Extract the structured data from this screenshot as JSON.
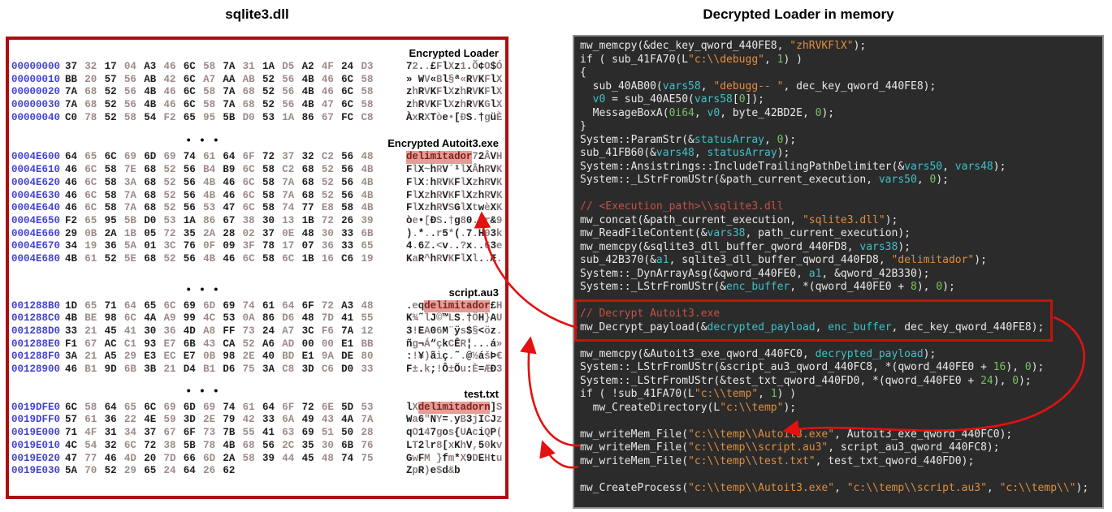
{
  "left_panel": {
    "title": "sqlite3.dll",
    "dots": "• • •",
    "sections": [
      {
        "label": "Encrypted Loader",
        "rows": [
          {
            "offset": "00000000",
            "bytes": "37 32 17 04 A3 46 6C 58 7A 31 1A D5 A2 4F 24 D3",
            "ascii_pre": "72..£FlXz1.Õ¢O$Ó",
            "ascii_hl": "",
            "ascii_post": ""
          },
          {
            "offset": "00000010",
            "bytes": "BB 20 57 56 AB 42 6C A7 AA AB 52 56 4B 46 6C 58",
            "ascii_pre": "» WV«Bl§ª«RVKFlX",
            "ascii_hl": "",
            "ascii_post": ""
          },
          {
            "offset": "00000020",
            "bytes": "7A 68 52 56 4B 46 6C 58 7A 68 52 56 4B 46 6C 58",
            "ascii_pre": "zhRVKFlXzhRVKFlX",
            "ascii_hl": "",
            "ascii_post": ""
          },
          {
            "offset": "00000030",
            "bytes": "7A 68 52 56 4B 46 6C 58 7A 68 52 56 4B 47 6C 58",
            "ascii_pre": "zhRVKFlXzhRVKGlX",
            "ascii_hl": "",
            "ascii_post": ""
          },
          {
            "offset": "00000040",
            "bytes": "C0 78 52 58 54 F2 65 95 5B D0 53 1A 86 67 FC C8",
            "ascii_pre": "ÀxRXTòe•[ÐS.†güÈ",
            "ascii_hl": "",
            "ascii_post": ""
          }
        ]
      },
      {
        "label": "Encrypted Autoit3.exe",
        "rows": [
          {
            "offset": "0004E600",
            "bytes": "64 65 6C 69 6D 69 74 61 64 6F 72 37 32 C2 56 48",
            "ascii_pre": "",
            "ascii_hl": "delimitador",
            "ascii_post": "72ÂVH"
          },
          {
            "offset": "0004E610",
            "bytes": "46 6C 58 7E 68 52 56 B4 B9 6C 58 C2 68 52 56 4B",
            "ascii_pre": "FlX~hRV´¹lXÂhRVK",
            "ascii_hl": "",
            "ascii_post": ""
          },
          {
            "offset": "0004E620",
            "bytes": "46 6C 58 3A 68 52 56 4B 46 6C 58 7A 68 52 56 4B",
            "ascii_pre": "FlX:hRVKFlXzhRVK",
            "ascii_hl": "",
            "ascii_post": ""
          },
          {
            "offset": "0004E630",
            "bytes": "46 6C 58 7A 68 52 56 4B 46 6C 58 7A 68 52 56 4B",
            "ascii_pre": "FlXzhRVKFlXzhRVK",
            "ascii_hl": "",
            "ascii_post": ""
          },
          {
            "offset": "0004E640",
            "bytes": "46 6C 58 7A 68 52 56 53 47 6C 58 74 77 E8 58 4B",
            "ascii_pre": "FlXzhRVSGlXtwèXK",
            "ascii_hl": "",
            "ascii_post": ""
          },
          {
            "offset": "0004E650",
            "bytes": "F2 65 95 5B D0 53 1A 86 67 38 30 13 1B 72 26 39",
            "ascii_pre": "òe•[ÐS.†g80..r&9",
            "ascii_hl": "",
            "ascii_post": ""
          },
          {
            "offset": "0004E660",
            "bytes": "29 0B 2A 1B 05 72 35 2A 28 02 37 0E 48 30 33 6B",
            "ascii_pre": ").*..r5*(.7.H03k",
            "ascii_hl": "",
            "ascii_post": ""
          },
          {
            "offset": "0004E670",
            "bytes": "34 19 36 5A 01 3C 76 0F 09 3F 78 17 07 36 33 65",
            "ascii_pre": "4.6Z.<v..?x..63e",
            "ascii_hl": "",
            "ascii_post": ""
          },
          {
            "offset": "0004E680",
            "bytes": "4B 61 52 5E 68 52 56 4B 46 6C 58 6C 1B 16 C6 19",
            "ascii_pre": "KaR^hRVKFlXl..Æ.",
            "ascii_hl": "",
            "ascii_post": ""
          }
        ]
      },
      {
        "label": "script.au3",
        "rows": [
          {
            "offset": "001288B0",
            "bytes": "1D 65 71 64 65 6C 69 6D 69 74 61 64 6F 72 A3 48",
            "ascii_pre": ".eq",
            "ascii_hl": "delimitador",
            "ascii_post": "£H"
          },
          {
            "offset": "001288C0",
            "bytes": "4B BE 98 6C 4A A9 99 4C 53 0A 86 D6 48 7D 41 55",
            "ascii_pre": "K¾˜lJ©™LS.†ÖH}AU",
            "ascii_hl": "",
            "ascii_post": ""
          },
          {
            "offset": "001288D0",
            "bytes": "33 21 45 41 30 36 4D A8 FF 73 24 A7 3C F6 7A 12",
            "ascii_pre": "3!EA06M¨ÿs$§<öz.",
            "ascii_hl": "",
            "ascii_post": ""
          },
          {
            "offset": "001288E0",
            "bytes": "F1 67 AC C1 93 E7 6B 43 CA 52 A6 AD 00 00 E1 BB",
            "ascii_pre": "ñg¬Á“çkCÊR¦...á»",
            "ascii_hl": "",
            "ascii_post": ""
          },
          {
            "offset": "001288F0",
            "bytes": "3A 21 A5 29 E3 EC E7 0B 98 2E 40 BD E1 9A DE 80",
            "ascii_pre": ":!¥)ãìç.˜.@½ášÞ€",
            "ascii_hl": "",
            "ascii_post": ""
          },
          {
            "offset": "00128900",
            "bytes": "46 B1 9D 6B 3B 21 D4 B1 D6 75 3A C8 3D C6 D0 33",
            "ascii_pre": "F±.k;!Ô±Öu:È=ÆÐ3",
            "ascii_hl": "",
            "ascii_post": ""
          }
        ]
      },
      {
        "label": "test.txt",
        "rows": [
          {
            "offset": "0019DFE0",
            "bytes": "6C 58 64 65 6C 69 6D 69 74 61 64 6F 72 6E 5D 53",
            "ascii_pre": "lX",
            "ascii_hl": "delimitadorn",
            "ascii_post": "]S"
          },
          {
            "offset": "0019DFF0",
            "bytes": "57 61 36 22 4E 59 3D 2E 79 42 33 6A 49 43 4A 7A",
            "ascii_pre": "Wa6\"NY=.yB3jICJz",
            "ascii_hl": "",
            "ascii_post": ""
          },
          {
            "offset": "0019E000",
            "bytes": "71 4F 31 34 37 67 6F 73 7B 55 41 63 69 51 50 28",
            "ascii_pre": "qO147gos{UAciQP(",
            "ascii_hl": "",
            "ascii_post": ""
          },
          {
            "offset": "0019E010",
            "bytes": "4C 54 32 6C 72 38 5B 78 4B 68 56 2C 35 30 6B 76",
            "ascii_pre": "LT2lr8[xKhV,50kv",
            "ascii_hl": "",
            "ascii_post": ""
          },
          {
            "offset": "0019E020",
            "bytes": "47 77 46 4D 20 7D 66 6D 2A 58 39 44 45 48 74 75",
            "ascii_pre": "GwFM }fm*X9DEHtu",
            "ascii_hl": "",
            "ascii_post": ""
          },
          {
            "offset": "0019E030",
            "bytes": "5A 70 52 29 65 24 64 26 62",
            "ascii_pre": "ZpR)e$d&b",
            "ascii_hl": "",
            "ascii_post": ""
          }
        ]
      }
    ]
  },
  "right_panel": {
    "title": "Decrypted Loader in memory",
    "code_lines": [
      [
        [
          "p",
          "mw_memcpy(&dec_key_qword_440FE8, "
        ],
        [
          "s",
          "\"zhRVKFlX\""
        ],
        [
          "p",
          ");"
        ]
      ],
      [
        [
          "p",
          "if ( sub_41FA70(L"
        ],
        [
          "s",
          "\"c:\\\\debugg\""
        ],
        [
          "p",
          ", "
        ],
        [
          "n",
          "1"
        ],
        [
          "p",
          ") )"
        ]
      ],
      [
        [
          "p",
          "{"
        ]
      ],
      [
        [
          "p",
          "  sub_40AB00("
        ],
        [
          "l",
          "vars58"
        ],
        [
          "p",
          ", "
        ],
        [
          "s",
          "\"debugg-- \""
        ],
        [
          "p",
          ", dec_key_qword_440FE8);"
        ]
      ],
      [
        [
          "p",
          "  "
        ],
        [
          "l",
          "v0"
        ],
        [
          "p",
          " = sub_40AE50("
        ],
        [
          "l",
          "vars58"
        ],
        [
          "p",
          "["
        ],
        [
          "n",
          "0"
        ],
        [
          "p",
          "]);"
        ]
      ],
      [
        [
          "p",
          "  MessageBoxA("
        ],
        [
          "n",
          "0i64"
        ],
        [
          "p",
          ", "
        ],
        [
          "l",
          "v0"
        ],
        [
          "p",
          ", byte_42BD2E, "
        ],
        [
          "n",
          "0"
        ],
        [
          "p",
          ");"
        ]
      ],
      [
        [
          "p",
          "}"
        ]
      ],
      [
        [
          "p",
          "System::ParamStr(&"
        ],
        [
          "l",
          "statusArray"
        ],
        [
          "p",
          ", "
        ],
        [
          "n",
          "0"
        ],
        [
          "p",
          ");"
        ]
      ],
      [
        [
          "p",
          "sub_41FB60(&"
        ],
        [
          "l",
          "vars48"
        ],
        [
          "p",
          ", "
        ],
        [
          "l",
          "statusArray"
        ],
        [
          "p",
          ");"
        ]
      ],
      [
        [
          "p",
          "System::Ansistrings::IncludeTrailingPathDelimiter(&"
        ],
        [
          "l",
          "vars50"
        ],
        [
          "p",
          ", "
        ],
        [
          "l",
          "vars48"
        ],
        [
          "p",
          ");"
        ]
      ],
      [
        [
          "p",
          "System::_LStrFromUStr(&path_current_execution, "
        ],
        [
          "l",
          "vars50"
        ],
        [
          "p",
          ", "
        ],
        [
          "n",
          "0"
        ],
        [
          "p",
          ");"
        ]
      ],
      [],
      [
        [
          "c",
          "// <Execution_path>\\\\sqlite3.dll"
        ]
      ],
      [
        [
          "p",
          "mw_concat(&path_current_execution, "
        ],
        [
          "s",
          "\"sqlite3.dll\""
        ],
        [
          "p",
          ");"
        ]
      ],
      [
        [
          "p",
          "mw_ReadFileContent(&"
        ],
        [
          "l",
          "vars38"
        ],
        [
          "p",
          ", path_current_execution);"
        ]
      ],
      [
        [
          "p",
          "mw_memcpy(&sqlite3_dll_buffer_qword_440FD8, "
        ],
        [
          "l",
          "vars38"
        ],
        [
          "p",
          ");"
        ]
      ],
      [
        [
          "p",
          "sub_42B370(&"
        ],
        [
          "l",
          "a1"
        ],
        [
          "p",
          ", sqlite3_dll_buffer_qword_440FD8, "
        ],
        [
          "s",
          "\"delimitador\""
        ],
        [
          "p",
          ");"
        ]
      ],
      [
        [
          "p",
          "System::_DynArrayAsg(&qword_440FE0, "
        ],
        [
          "l",
          "a1"
        ],
        [
          "p",
          ", &qword_42B330);"
        ]
      ],
      [
        [
          "p",
          "System::_LStrFromUStr(&"
        ],
        [
          "l",
          "enc_buffer"
        ],
        [
          "p",
          ", *(qword_440FE0 + "
        ],
        [
          "n",
          "8"
        ],
        [
          "p",
          "), "
        ],
        [
          "n",
          "0"
        ],
        [
          "p",
          ");"
        ]
      ],
      [],
      [
        [
          "c",
          "// Decrypt Autoit3.exe"
        ]
      ],
      [
        [
          "p",
          "mw_Decrypt_payload(&"
        ],
        [
          "l",
          "decrypted_payload"
        ],
        [
          "p",
          ", "
        ],
        [
          "l",
          "enc_buffer"
        ],
        [
          "p",
          ", dec_key_qword_440FE8);"
        ]
      ],
      [],
      [
        [
          "p",
          "mw_memcpy(&Autoit3_exe_qword_440FC0, "
        ],
        [
          "l",
          "decrypted_payload"
        ],
        [
          "p",
          ");"
        ]
      ],
      [
        [
          "p",
          "System::_LStrFromUStr(&script_au3_qword_440FC8, *(qword_440FE0 + "
        ],
        [
          "n",
          "16"
        ],
        [
          "p",
          "), "
        ],
        [
          "n",
          "0"
        ],
        [
          "p",
          ");"
        ]
      ],
      [
        [
          "p",
          "System::_LStrFromUStr(&test_txt_qword_440FD0, *(qword_440FE0 + "
        ],
        [
          "n",
          "24"
        ],
        [
          "p",
          "), "
        ],
        [
          "n",
          "0"
        ],
        [
          "p",
          ");"
        ]
      ],
      [
        [
          "p",
          "if ( !sub_41FA70(L"
        ],
        [
          "s",
          "\"c:\\\\temp\""
        ],
        [
          "p",
          ", "
        ],
        [
          "n",
          "1"
        ],
        [
          "p",
          ") )"
        ]
      ],
      [
        [
          "p",
          "  mw_CreateDirectory(L"
        ],
        [
          "s",
          "\"c:\\\\temp\""
        ],
        [
          "p",
          ");"
        ]
      ],
      [],
      [
        [
          "p",
          "mw_writeMem_File("
        ],
        [
          "s",
          "\"c:\\\\temp\\\\Autoit3.exe\""
        ],
        [
          "p",
          ", Autoit3_exe_qword_440FC0);"
        ]
      ],
      [
        [
          "p",
          "mw_writeMem_File("
        ],
        [
          "s",
          "\"c:\\\\temp\\\\script.au3\""
        ],
        [
          "p",
          ", script_au3_qword_440FC8);"
        ]
      ],
      [
        [
          "p",
          "mw_writeMem_File("
        ],
        [
          "s",
          "\"c:\\\\temp\\\\test.txt\""
        ],
        [
          "p",
          ", test_txt_qword_440FD0);"
        ]
      ],
      [],
      [
        [
          "p",
          "mw_CreateProcess("
        ],
        [
          "s",
          "\"c:\\\\temp\\\\Autoit3.exe\""
        ],
        [
          "p",
          ", "
        ],
        [
          "s",
          "\"c:\\\\temp\\\\script.au3\""
        ],
        [
          "p",
          ", "
        ],
        [
          "s",
          "\"c:\\\\temp\\\\\""
        ],
        [
          "p",
          ");"
        ]
      ]
    ]
  },
  "colors": {
    "panel_border_red": "#ac0e11",
    "offset_blue": "#4343d1",
    "byte_dark": "#1f1f1f",
    "byte_light": "#9d8b88",
    "highlight_bg": "#e79c97",
    "highlight_text": "#7c231c",
    "code_bg": "#2b2b2b",
    "code_plain": "#e8e8e8",
    "code_local": "#3fc1c9",
    "code_string": "#de8e3f",
    "code_comment": "#c65244",
    "code_number": "#79c262",
    "arrow_red": "#e31111"
  }
}
